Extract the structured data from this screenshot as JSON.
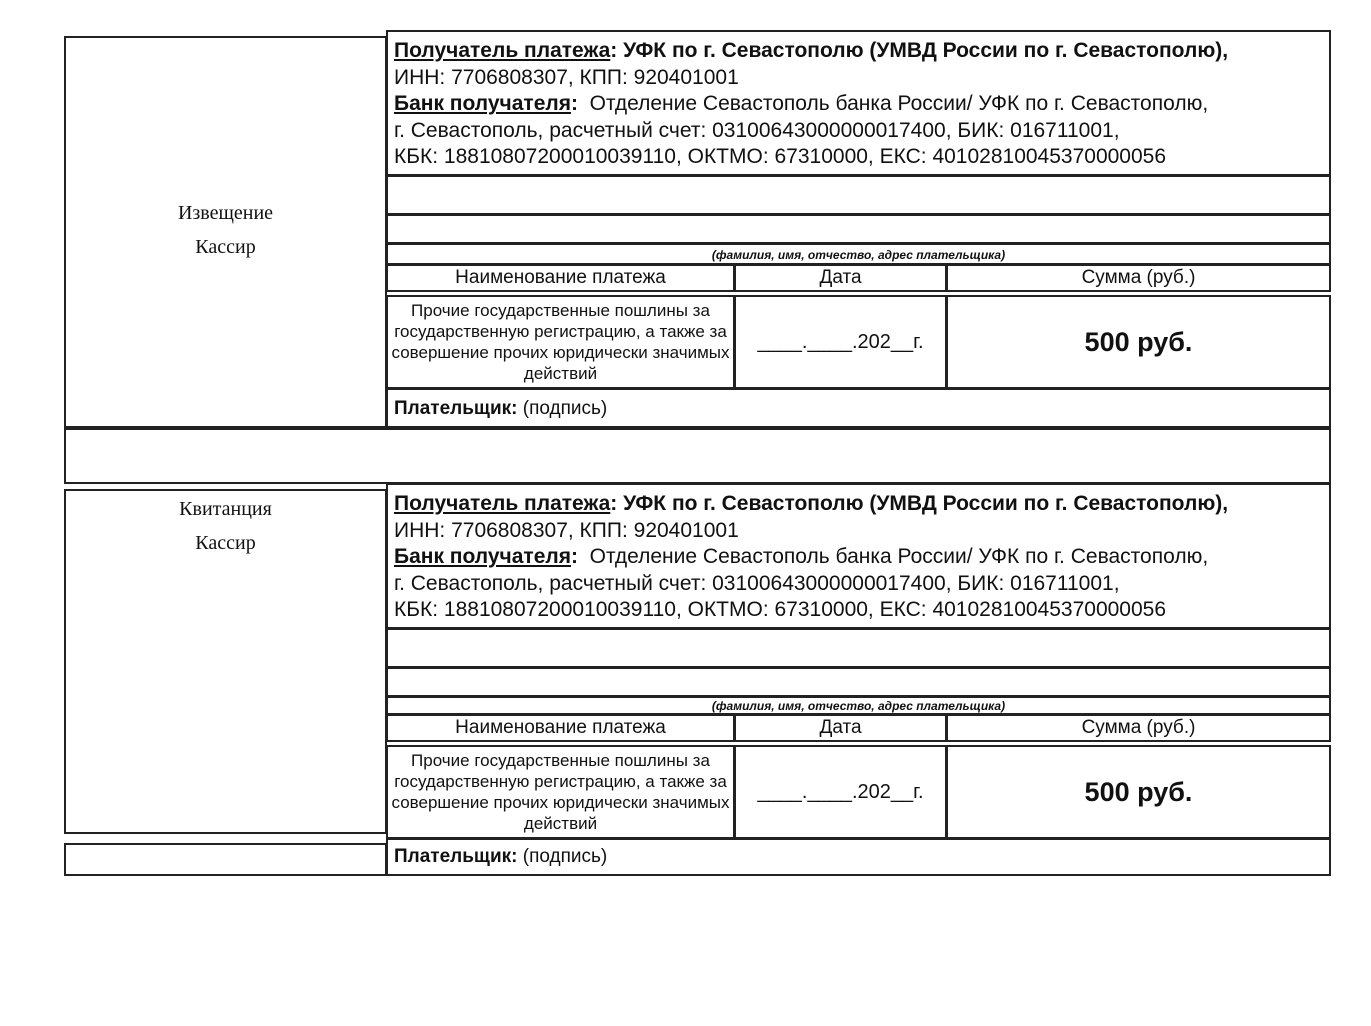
{
  "sections": [
    {
      "side_title": "Извещение",
      "side_sub": "Кассир",
      "recipient_label": "Получатель платежа",
      "recipient_value": ": УФК по г. Севастополю (УМВД России по г. Севастополю),",
      "inn_kpp": "ИНН: 7706808307, КПП: 920401001",
      "bank_label": "Банк получателя",
      "bank_colon": ":",
      "bank_value": "  Отделение Севастополь банка России/ УФК по г. Севастополю,",
      "account_line": "г. Севастополь, расчетный счет: 03100643000000017400, БИК: 016711001,",
      "kbk_line": "КБК: 18810807200010039110, ОКТМО: 67310000, ЕКС: 40102810045370000056",
      "payer_caption": "(фамилия, имя, отчество, адрес плательщика)",
      "col_name": "Наименование платежа",
      "col_date": "Дата",
      "col_sum": "Сумма (руб.)",
      "payment_name": "Прочие государственные пошлины за государственную регистрацию, а также за совершение прочих юридически значимых действий",
      "payment_date": "____.____.202__г.",
      "payment_sum": "500 руб.",
      "payer_label": "Плательщик:",
      "payer_sign": " (подпись)"
    },
    {
      "side_title": "Квитанция",
      "side_sub": "Кассир",
      "recipient_label": "Получатель платежа",
      "recipient_value": ": УФК по г. Севастополю (УМВД России по г. Севастополю),",
      "inn_kpp": "ИНН: 7706808307, КПП: 920401001",
      "bank_label": "Банк получателя",
      "bank_colon": ":",
      "bank_value": "  Отделение Севастополь банка России/ УФК по г. Севастополю,",
      "account_line": "г. Севастополь, расчетный счет: 03100643000000017400, БИК: 016711001,",
      "kbk_line": "КБК: 18810807200010039110, ОКТМО: 67310000, ЕКС: 40102810045370000056",
      "payer_caption": "(фамилия, имя, отчество, адрес плательщика)",
      "col_name": "Наименование платежа",
      "col_date": "Дата",
      "col_sum": "Сумма (руб.)",
      "payment_name": "Прочие государственные пошлины за государственную регистрацию, а также за совершение прочих юридически значимых действий",
      "payment_date": "____.____.202__г.",
      "payment_sum": "500 руб.",
      "payer_label": "Плательщик:",
      "payer_sign": " (подпись)"
    }
  ]
}
